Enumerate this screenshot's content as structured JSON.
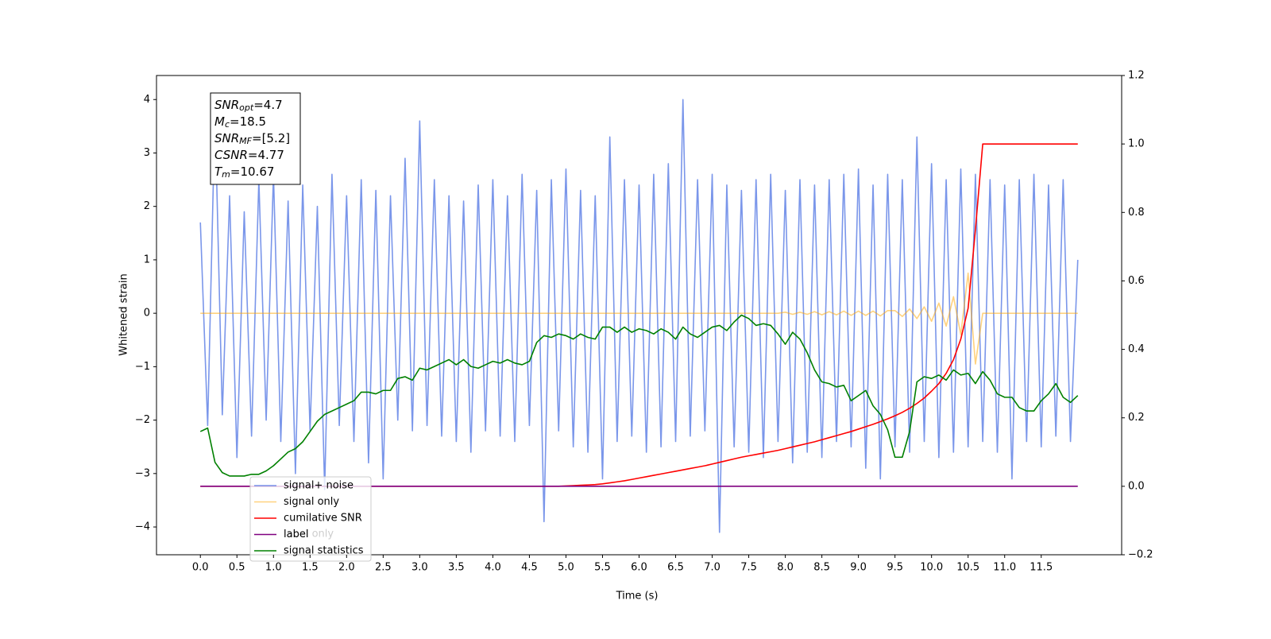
{
  "chart_data": {
    "type": "line",
    "xlabel": "Time (s)",
    "ylabel": "Whitened strain",
    "annotation": [
      {
        "symbol": "SNR",
        "sub": "opt",
        "value": "=4.7"
      },
      {
        "symbol": "M",
        "sub": "c",
        "value": "=18.5"
      },
      {
        "symbol": "SNR",
        "sub": "MF",
        "value": "=[5.2]"
      },
      {
        "symbol": "CSNR",
        "value": "=4.77"
      },
      {
        "symbol": "T",
        "sub": "m",
        "value": "=10.67"
      }
    ],
    "hidden_text": "label only",
    "legend": "lower left",
    "xlim": [
      -0.6,
      12.6
    ],
    "ylim": [
      -4.52,
      4.45
    ],
    "y2lim": [
      -0.2,
      1.2
    ],
    "xticks": [
      {
        "value": 0,
        "label": "0.0"
      },
      0.5,
      {
        "value": 1,
        "label": "1.0"
      },
      1.5,
      {
        "value": 2,
        "label": "2.0"
      },
      2.5,
      {
        "value": 3,
        "label": "3.0"
      },
      3.5,
      {
        "value": 4,
        "label": "4.0"
      },
      4.5,
      {
        "value": 5,
        "label": "5.0"
      },
      5.5,
      {
        "value": 6,
        "label": "6.0"
      },
      6.5,
      {
        "value": 7,
        "label": "7.0"
      },
      7.5,
      {
        "value": 8,
        "label": "8.0"
      },
      8.5,
      {
        "value": 9,
        "label": "9.0"
      },
      9.5,
      {
        "value": 10,
        "label": "10.0"
      },
      10.5,
      {
        "value": 11,
        "label": "11.0"
      },
      11.5
    ],
    "yticks": [
      {
        "value": -4,
        "label": "−4"
      },
      {
        "value": -3,
        "label": "−3"
      },
      {
        "value": -2,
        "label": "−2"
      },
      {
        "value": -1,
        "label": "−1"
      },
      0,
      1,
      2,
      3,
      4
    ],
    "y2ticks": [
      {
        "value": -0.2,
        "label": "−0.2"
      },
      {
        "value": 0,
        "label": "0.0"
      },
      0.2,
      0.4,
      0.6,
      0.8,
      {
        "value": 1,
        "label": "1.0"
      },
      1.2
    ],
    "x": [
      0.0,
      0.1,
      0.2,
      0.3,
      0.4,
      0.5,
      0.6,
      0.7,
      0.8,
      0.9,
      1.0,
      1.1,
      1.2,
      1.3,
      1.4,
      1.5,
      1.6,
      1.7,
      1.8,
      1.9,
      2.0,
      2.1,
      2.2,
      2.3,
      2.4,
      2.5,
      2.6,
      2.7,
      2.8,
      2.9,
      3.0,
      3.1,
      3.2,
      3.3,
      3.4,
      3.5,
      3.6,
      3.7,
      3.8,
      3.9,
      4.0,
      4.1,
      4.2,
      4.3,
      4.4,
      4.5,
      4.6,
      4.7,
      4.8,
      4.9,
      5.0,
      5.1,
      5.2,
      5.3,
      5.4,
      5.5,
      5.6,
      5.7,
      5.8,
      5.9,
      6.0,
      6.1,
      6.2,
      6.3,
      6.4,
      6.5,
      6.6,
      6.7,
      6.8,
      6.9,
      7.0,
      7.1,
      7.2,
      7.3,
      7.4,
      7.5,
      7.6,
      7.7,
      7.8,
      7.9,
      8.0,
      8.1,
      8.2,
      8.3,
      8.4,
      8.5,
      8.6,
      8.7,
      8.8,
      8.9,
      9.0,
      9.1,
      9.2,
      9.3,
      9.4,
      9.5,
      9.6,
      9.7,
      9.8,
      9.9,
      10.0,
      10.1,
      10.2,
      10.3,
      10.4,
      10.5,
      10.6,
      10.7,
      10.8,
      10.9,
      11.0,
      11.1,
      11.2,
      11.3,
      11.4,
      11.5,
      11.6,
      11.7,
      11.8,
      11.9,
      12.0
    ],
    "series": [
      {
        "name": "signal+ noise",
        "color": "#4169e1",
        "alpha": 0.7,
        "values": [
          1.7,
          -2.1,
          3.8,
          -1.9,
          2.2,
          -2.7,
          1.9,
          -2.3,
          2.5,
          -2.0,
          2.6,
          -2.4,
          2.1,
          -3.0,
          2.4,
          -2.2,
          2.0,
          -3.3,
          2.6,
          -2.1,
          2.2,
          -2.4,
          2.5,
          -2.8,
          2.3,
          -3.1,
          2.2,
          -2.0,
          2.9,
          -2.2,
          3.6,
          -2.1,
          2.5,
          -2.3,
          2.2,
          -2.4,
          2.1,
          -2.6,
          2.4,
          -2.2,
          2.5,
          -2.3,
          2.2,
          -2.4,
          2.6,
          -2.1,
          2.3,
          -3.9,
          2.5,
          -2.2,
          2.7,
          -2.5,
          2.3,
          -2.6,
          2.2,
          -3.1,
          3.3,
          -2.4,
          2.5,
          -2.3,
          2.4,
          -2.6,
          2.6,
          -2.5,
          2.8,
          -2.4,
          4.0,
          -2.3,
          2.5,
          -2.2,
          2.6,
          -4.1,
          2.4,
          -2.5,
          2.3,
          -2.6,
          2.5,
          -2.7,
          2.6,
          -2.4,
          2.3,
          -2.8,
          2.5,
          -2.6,
          2.4,
          -2.7,
          2.5,
          -2.4,
          2.6,
          -2.5,
          2.7,
          -2.9,
          2.4,
          -3.1,
          2.6,
          -2.5,
          2.5,
          -2.6,
          3.3,
          -2.4,
          2.8,
          -2.7,
          2.5,
          -2.6,
          2.7,
          -2.5,
          2.6,
          -2.4,
          2.5,
          -2.6,
          2.4,
          -3.1,
          2.5,
          -2.4,
          2.6,
          -2.5,
          2.4,
          -2.3,
          2.5,
          -2.4,
          1.0
        ]
      },
      {
        "name": "signal only",
        "color": "#ffa500",
        "alpha": 0.5,
        "values": [
          0,
          0,
          0,
          0,
          0,
          0,
          0,
          0,
          0,
          0,
          0,
          0,
          0,
          0,
          0,
          0,
          0,
          0,
          0,
          0,
          0,
          0,
          0,
          0,
          0,
          0,
          0,
          0,
          0,
          0,
          0,
          0,
          0,
          0,
          0,
          0,
          0,
          0,
          0,
          0,
          0,
          0,
          0,
          0,
          0,
          0,
          0,
          0,
          0,
          0,
          0,
          0,
          0,
          0,
          0,
          0,
          0,
          0,
          0,
          0,
          0,
          0,
          0,
          0,
          0,
          0,
          0,
          0,
          0,
          0,
          0,
          0,
          0,
          0,
          0,
          0,
          0,
          0,
          0,
          0,
          0.02,
          -0.02,
          0.02,
          -0.02,
          0.03,
          -0.03,
          0.03,
          -0.03,
          0.04,
          -0.04,
          0.04,
          -0.04,
          0.04,
          -0.05,
          0.05,
          0.05,
          -0.06,
          0.08,
          -0.1,
          0.12,
          -0.15,
          0.19,
          -0.24,
          0.31,
          -0.4,
          0.75,
          -0.95,
          0,
          0,
          0,
          0,
          0,
          0,
          0,
          0,
          0,
          0,
          0,
          0,
          0,
          0
        ]
      },
      {
        "name": "cumilative SNR",
        "color": "#ff0000",
        "axis": "y2",
        "values": [
          0,
          0,
          0,
          0,
          0,
          0,
          0,
          0,
          0,
          0,
          0,
          0,
          0,
          0,
          0,
          0,
          0,
          0,
          0,
          0,
          0,
          0,
          0,
          0,
          0,
          0,
          0,
          0,
          0,
          0,
          0,
          0,
          0,
          0,
          0,
          0,
          0,
          0,
          0,
          0,
          0,
          0,
          0,
          0,
          0,
          0,
          0,
          0,
          0,
          0,
          0.001,
          0.002,
          0.003,
          0.004,
          0.005,
          0.007,
          0.01,
          0.013,
          0.016,
          0.02,
          0.024,
          0.028,
          0.032,
          0.036,
          0.04,
          0.044,
          0.048,
          0.052,
          0.056,
          0.06,
          0.065,
          0.07,
          0.075,
          0.08,
          0.085,
          0.089,
          0.093,
          0.097,
          0.101,
          0.105,
          0.11,
          0.115,
          0.12,
          0.125,
          0.13,
          0.136,
          0.142,
          0.148,
          0.154,
          0.16,
          0.167,
          0.174,
          0.181,
          0.189,
          0.197,
          0.206,
          0.216,
          0.228,
          0.242,
          0.258,
          0.278,
          0.3,
          0.33,
          0.37,
          0.43,
          0.52,
          0.75,
          1.0,
          1.0,
          1.0,
          1.0,
          1.0,
          1.0,
          1.0,
          1.0,
          1.0,
          1.0,
          1.0,
          1.0,
          1.0,
          1.0
        ]
      },
      {
        "name": "label",
        "color": "#800080",
        "axis": "y2",
        "values": [
          0,
          0,
          0,
          0,
          0,
          0,
          0,
          0,
          0,
          0,
          0,
          0,
          0,
          0,
          0,
          0,
          0,
          0,
          0,
          0,
          0,
          0,
          0,
          0,
          0,
          0,
          0,
          0,
          0,
          0,
          0,
          0,
          0,
          0,
          0,
          0,
          0,
          0,
          0,
          0,
          0,
          0,
          0,
          0,
          0,
          0,
          0,
          0,
          0,
          0,
          0,
          0,
          0,
          0,
          0,
          0,
          0,
          0,
          0,
          0,
          0,
          0,
          0,
          0,
          0,
          0,
          0,
          0,
          0,
          0,
          0,
          0,
          0,
          0,
          0,
          0,
          0,
          0,
          0,
          0,
          0,
          0,
          0,
          0,
          0,
          0,
          0,
          0,
          0,
          0,
          0,
          0,
          0,
          0,
          0,
          0,
          0,
          0,
          0,
          0,
          0,
          0,
          0,
          0,
          0,
          0,
          0,
          0,
          0,
          0,
          0,
          0,
          0,
          0,
          0,
          0,
          0,
          0,
          0,
          0,
          0
        ]
      },
      {
        "name": "signal statistics",
        "color": "#008000",
        "axis": "y2",
        "values": [
          0.16,
          0.17,
          0.07,
          0.04,
          0.03,
          0.03,
          0.03,
          0.035,
          0.035,
          0.045,
          0.06,
          0.08,
          0.1,
          0.11,
          0.13,
          0.16,
          0.19,
          0.21,
          0.22,
          0.23,
          0.24,
          0.25,
          0.275,
          0.275,
          0.27,
          0.28,
          0.28,
          0.315,
          0.32,
          0.31,
          0.345,
          0.34,
          0.35,
          0.36,
          0.37,
          0.355,
          0.37,
          0.35,
          0.345,
          0.355,
          0.365,
          0.36,
          0.37,
          0.36,
          0.355,
          0.365,
          0.42,
          0.44,
          0.435,
          0.445,
          0.44,
          0.43,
          0.445,
          0.435,
          0.43,
          0.465,
          0.465,
          0.45,
          0.465,
          0.45,
          0.46,
          0.455,
          0.445,
          0.46,
          0.45,
          0.43,
          0.465,
          0.445,
          0.435,
          0.45,
          0.465,
          0.47,
          0.455,
          0.48,
          0.5,
          0.49,
          0.47,
          0.475,
          0.47,
          0.445,
          0.415,
          0.45,
          0.43,
          0.39,
          0.34,
          0.305,
          0.3,
          0.29,
          0.295,
          0.25,
          0.265,
          0.28,
          0.235,
          0.21,
          0.165,
          0.085,
          0.085,
          0.16,
          0.305,
          0.32,
          0.315,
          0.325,
          0.31,
          0.34,
          0.325,
          0.33,
          0.3,
          0.335,
          0.31,
          0.27,
          0.26,
          0.26,
          0.23,
          0.22,
          0.22,
          0.25,
          0.27,
          0.3,
          0.26,
          0.245,
          0.265
        ]
      }
    ]
  }
}
